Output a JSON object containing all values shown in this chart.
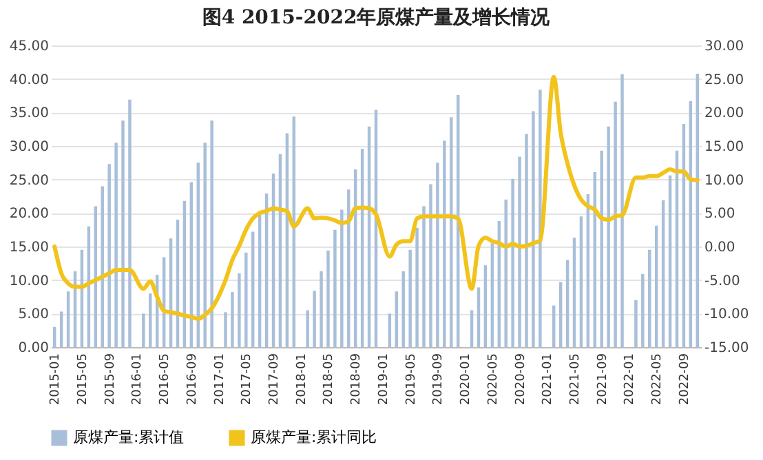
{
  "chart_data": {
    "type": "bar",
    "title": "图4  2015-2022年原煤产量及增长情况",
    "categories": [
      "2015-01",
      null,
      null,
      null,
      "2015-05",
      null,
      null,
      null,
      "2015-09",
      null,
      null,
      null,
      "2016-01",
      null,
      null,
      null,
      "2016-05",
      null,
      null,
      null,
      "2016-09",
      null,
      null,
      null,
      "2017-01",
      null,
      null,
      null,
      "2017-05",
      null,
      null,
      null,
      "2017-09",
      null,
      null,
      null,
      "2018-01",
      null,
      null,
      null,
      "2018-05",
      null,
      null,
      null,
      "2018-09",
      null,
      null,
      null,
      "2019-01",
      null,
      null,
      null,
      "2019-05",
      null,
      null,
      null,
      "2019-09",
      null,
      null,
      null,
      "2020-01",
      null,
      null,
      null,
      "2020-05",
      null,
      null,
      null,
      "2020-09",
      null,
      null,
      null,
      "2021-01",
      null,
      null,
      null,
      "2021-05",
      null,
      null,
      null,
      "2021-09",
      null,
      null,
      null,
      "2022-01",
      null,
      null,
      null,
      "2022-05",
      null,
      null,
      null,
      "2022-09",
      null,
      null
    ],
    "series": [
      {
        "name": "原煤产量:累计值",
        "type": "bar",
        "color": "#a9bfd9",
        "values": [
          3.0,
          5.3,
          8.3,
          11.3,
          14.5,
          18.0,
          21.0,
          24.0,
          27.3,
          30.5,
          33.8,
          36.9,
          null,
          5.0,
          8.0,
          10.8,
          13.4,
          16.2,
          19.0,
          21.8,
          24.6,
          27.5,
          30.5,
          33.8,
          null,
          5.2,
          8.2,
          11.0,
          14.1,
          17.2,
          20.0,
          22.9,
          25.9,
          28.8,
          31.9,
          34.4,
          null,
          5.5,
          8.4,
          11.3,
          14.4,
          17.5,
          20.5,
          23.5,
          26.5,
          29.6,
          32.9,
          35.4,
          null,
          5.0,
          8.3,
          11.3,
          14.5,
          17.8,
          21.0,
          24.3,
          27.5,
          30.8,
          34.3,
          37.6,
          null,
          5.5,
          8.9,
          12.2,
          15.5,
          18.8,
          22.0,
          25.1,
          28.4,
          31.8,
          35.2,
          38.4,
          null,
          6.2,
          9.7,
          13.0,
          16.3,
          19.5,
          22.8,
          26.1,
          29.3,
          32.9,
          36.6,
          40.7,
          null,
          7.0,
          10.9,
          14.5,
          18.1,
          21.9,
          25.6,
          29.3,
          33.3,
          36.7,
          40.8
        ]
      },
      {
        "name": "原煤产量:累计同比",
        "type": "line",
        "axis": "y2",
        "color": "#f2c31b",
        "values": [
          0.0,
          -4.0,
          -5.5,
          -6.0,
          -6.0,
          -5.5,
          -5.0,
          -4.5,
          -4.0,
          -3.5,
          -3.5,
          -3.5,
          null,
          -6.3,
          -5.2,
          -7.5,
          -9.6,
          -9.8,
          -10.0,
          -10.3,
          -10.5,
          -10.8,
          -10.2,
          -9.2,
          null,
          -5.0,
          -2.0,
          0.1,
          2.5,
          4.2,
          5.0,
          5.3,
          5.7,
          5.5,
          5.3,
          3.0,
          null,
          5.7,
          4.2,
          4.3,
          4.2,
          3.9,
          3.5,
          3.8,
          5.7,
          5.8,
          5.7,
          4.8,
          null,
          -1.5,
          0.3,
          0.8,
          0.8,
          4.2,
          4.5,
          4.5,
          4.5,
          4.5,
          4.5,
          4.2,
          null,
          -6.3,
          0.1,
          1.3,
          0.8,
          0.5,
          0.0,
          0.4,
          0.0,
          0.1,
          0.5,
          0.9,
          null,
          25.3,
          17.0,
          12.4,
          9.1,
          7.0,
          6.0,
          5.5,
          4.2,
          4.0,
          4.5,
          4.7,
          null,
          10.3,
          10.3,
          10.5,
          10.5,
          11.0,
          11.5,
          11.2,
          11.2,
          10.0,
          9.9
        ]
      }
    ],
    "ylim": [
      0,
      45
    ],
    "yticks": [
      {
        "value": 0,
        "label": "0.00"
      },
      {
        "value": 5,
        "label": "5.00"
      },
      {
        "value": 10,
        "label": "10.00"
      },
      {
        "value": 15,
        "label": "15.00"
      },
      {
        "value": 20,
        "label": "20.00"
      },
      {
        "value": 25,
        "label": "25.00"
      },
      {
        "value": 30,
        "label": "30.00"
      },
      {
        "value": 35,
        "label": "35.00"
      },
      {
        "value": 40,
        "label": "40.00"
      },
      {
        "value": 45,
        "label": "45.00"
      }
    ],
    "y2lim": [
      -15,
      30
    ],
    "y2ticks": [
      {
        "value": -15,
        "label": "-15.00"
      },
      {
        "value": -10,
        "label": "-10.00"
      },
      {
        "value": -5,
        "label": "-5.00"
      },
      {
        "value": 0,
        "label": "0.00"
      },
      {
        "value": 5,
        "label": "5.00"
      },
      {
        "value": 10,
        "label": "10.00"
      },
      {
        "value": 15,
        "label": "15.00"
      },
      {
        "value": 20,
        "label": "20.00"
      },
      {
        "value": 25,
        "label": "25.00"
      },
      {
        "value": 30,
        "label": "30.00"
      }
    ],
    "grid": "y",
    "legend": "bottom"
  }
}
